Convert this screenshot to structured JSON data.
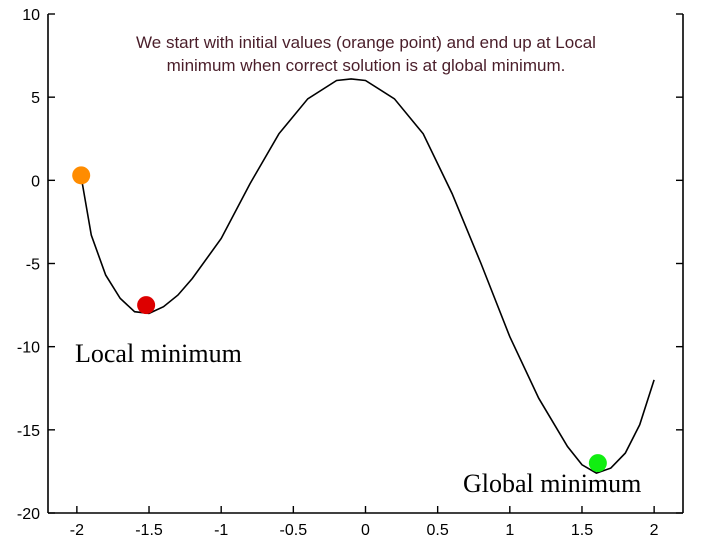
{
  "chart_data": {
    "type": "line",
    "title": "",
    "xlabel": "",
    "ylabel": "",
    "xlim": [
      -2.2,
      2.2
    ],
    "ylim": [
      -20,
      10
    ],
    "x_ticks": [
      -2,
      -1.5,
      -1,
      -0.5,
      0,
      0.5,
      1,
      1.5,
      2
    ],
    "x_tick_labels": [
      "-2",
      "-1.5",
      "-1",
      "-0.5",
      "0",
      "0.5",
      "1",
      "1.5",
      "2"
    ],
    "y_ticks": [
      -20,
      -15,
      -10,
      -5,
      0,
      5,
      10
    ],
    "y_tick_labels": [
      "-20",
      "-15",
      "-10",
      "-5",
      "0",
      "5",
      "10"
    ],
    "grid": false,
    "series": [
      {
        "x": [
          -1.97,
          -1.9,
          -1.8,
          -1.7,
          -1.6,
          -1.5,
          -1.4,
          -1.3,
          -1.2,
          -1.0,
          -0.8,
          -0.6,
          -0.4,
          -0.2,
          -0.1,
          0.0,
          0.2,
          0.4,
          0.6,
          0.8,
          1.0,
          1.2,
          1.4,
          1.5,
          1.6,
          1.7,
          1.8,
          1.9,
          2.0
        ],
        "y": [
          0.2,
          -3.3,
          -5.7,
          -7.1,
          -7.9,
          -8.0,
          -7.6,
          -6.9,
          -5.9,
          -3.5,
          -0.2,
          2.8,
          4.9,
          6.0,
          6.1,
          6.0,
          4.9,
          2.8,
          -0.8,
          -5.0,
          -9.4,
          -13.1,
          -16.0,
          -17.1,
          -17.6,
          -17.3,
          -16.4,
          -14.7,
          -12.0
        ],
        "color": "#000000"
      }
    ],
    "points": [
      {
        "x": -1.97,
        "y": 0.3,
        "color": "#ff8c00"
      },
      {
        "x": -1.52,
        "y": -7.5,
        "color": "#dd0000"
      },
      {
        "x": 1.61,
        "y": -17.0,
        "color": "#11ee11"
      }
    ],
    "annotations": {
      "caption_line1": "We start with initial values (orange point) and end up at Local",
      "caption_line2": "minimum when correct solution is at global minimum.",
      "local_label": "Local minimum",
      "global_label": "Global minimum"
    }
  }
}
